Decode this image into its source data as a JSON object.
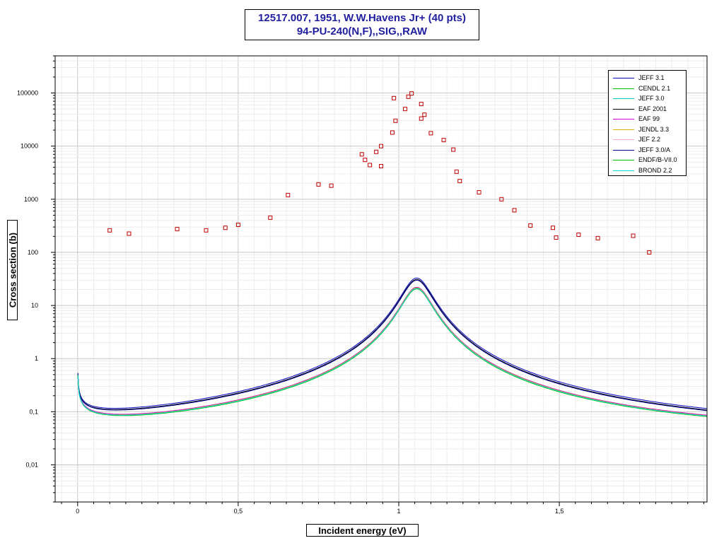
{
  "chart_data": {
    "type": "scatter",
    "title_line1": "12517.007, 1951, W.W.Havens Jr+ (40 pts)",
    "title_line2": "94-PU-240(N,F),,SIG,,RAW",
    "xlabel": "Incident energy (eV)",
    "ylabel": "Cross section (b)",
    "xlim": [
      -0.07,
      1.96
    ],
    "ylim": [
      0.002,
      500000
    ],
    "yscale": "log",
    "grid": true,
    "legend_position": "top-right",
    "x_ticks": [
      {
        "value": 0,
        "label": "0"
      },
      {
        "value": 0.5,
        "label": "0,5"
      },
      {
        "value": 1,
        "label": "1"
      },
      {
        "value": 1.5,
        "label": "1,5"
      }
    ],
    "y_ticks": [
      {
        "value": 0.01,
        "label": "0,01"
      },
      {
        "value": 0.1,
        "label": "0,1"
      },
      {
        "value": 1,
        "label": "1"
      },
      {
        "value": 10,
        "label": "10"
      },
      {
        "value": 100,
        "label": "100"
      },
      {
        "value": 1000,
        "label": "1000"
      },
      {
        "value": 10000,
        "label": "10000"
      },
      {
        "value": 100000,
        "label": "100000"
      }
    ],
    "experimental_points": {
      "color": "#c00000",
      "points": [
        [
          0.1,
          260
        ],
        [
          0.16,
          225
        ],
        [
          0.31,
          275
        ],
        [
          0.4,
          260
        ],
        [
          0.46,
          290
        ],
        [
          0.5,
          330
        ],
        [
          0.6,
          450
        ],
        [
          0.655,
          1200
        ],
        [
          0.75,
          1900
        ],
        [
          0.79,
          1800
        ],
        [
          0.885,
          7000
        ],
        [
          0.895,
          5500
        ],
        [
          0.91,
          4400
        ],
        [
          0.93,
          7800
        ],
        [
          0.945,
          10000
        ],
        [
          0.945,
          4200
        ],
        [
          0.98,
          18000
        ],
        [
          0.985,
          80000
        ],
        [
          0.99,
          30000
        ],
        [
          1.02,
          50000
        ],
        [
          1.03,
          85000
        ],
        [
          1.04,
          98000
        ],
        [
          1.07,
          62000
        ],
        [
          1.07,
          33000
        ],
        [
          1.08,
          39000
        ],
        [
          1.1,
          17500
        ],
        [
          1.14,
          13000
        ],
        [
          1.17,
          8600
        ],
        [
          1.18,
          3300
        ],
        [
          1.19,
          2200
        ],
        [
          1.25,
          1350
        ],
        [
          1.32,
          1000
        ],
        [
          1.36,
          620
        ],
        [
          1.41,
          320
        ],
        [
          1.48,
          290
        ],
        [
          1.49,
          190
        ],
        [
          1.56,
          215
        ],
        [
          1.62,
          185
        ],
        [
          1.73,
          205
        ],
        [
          1.78,
          100
        ]
      ]
    },
    "series": [
      {
        "name": "JEFF 3.1",
        "color": "#0000c0",
        "peak": 33,
        "bg": 0.03,
        "tail": 0.0136
      },
      {
        "name": "CENDL 2.1",
        "color": "#00c000",
        "peak": 22,
        "bg": 0.028,
        "tail": 0.0094
      },
      {
        "name": "JEFF 3.0",
        "color": "#00c8c8",
        "peak": 21,
        "bg": 0.0285,
        "tail": 0.0096
      },
      {
        "name": "EAF 2001",
        "color": "#000000",
        "peak": 31,
        "bg": 0.029,
        "tail": 0.009
      },
      {
        "name": "EAF 99",
        "color": "#d000d0",
        "peak": 22,
        "bg": 0.0295,
        "tail": 0.0092
      },
      {
        "name": "JENDL 3.3",
        "color": "#e0b000",
        "peak": 21.5,
        "bg": 0.0285,
        "tail": 0.0093
      },
      {
        "name": "JEF 2.2",
        "color": "#ffb0c0",
        "peak": 21,
        "bg": 0.0285,
        "tail": 0.0095
      },
      {
        "name": "JEFF 3.0/A",
        "color": "#000090",
        "peak": 30,
        "bg": 0.0288,
        "tail": 0.0091
      },
      {
        "name": "ENDF/B-VII.0",
        "color": "#00c000",
        "peak": 20.5,
        "bg": 0.0283,
        "tail": 0.0097
      },
      {
        "name": "BROND 2.2",
        "color": "#00d8d8",
        "peak": 21,
        "bg": 0.0287,
        "tail": 0.0098
      }
    ]
  }
}
